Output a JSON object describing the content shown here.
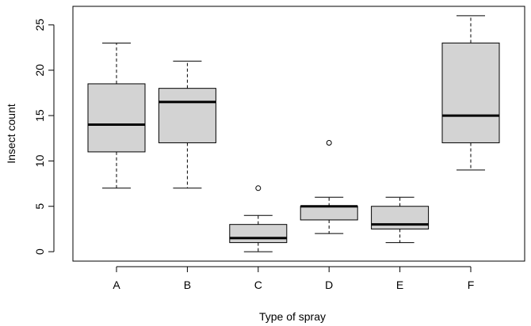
{
  "chart_data": {
    "type": "boxplot",
    "xlabel": "Type of spray",
    "ylabel": "Insect count",
    "categories": [
      "A",
      "B",
      "C",
      "D",
      "E",
      "F"
    ],
    "y_ticks": [
      "0",
      "5",
      "10",
      "15",
      "20",
      "25"
    ],
    "ylim": [
      -1.04,
      27.04
    ],
    "boxes": [
      {
        "label": "A",
        "whisker_low": 7,
        "q1": 11,
        "median": 14,
        "q3": 18.5,
        "whisker_high": 23,
        "outliers": []
      },
      {
        "label": "B",
        "whisker_low": 7,
        "q1": 12,
        "median": 16.5,
        "q3": 18,
        "whisker_high": 21,
        "outliers": []
      },
      {
        "label": "C",
        "whisker_low": 0,
        "q1": 1,
        "median": 1.5,
        "q3": 3,
        "whisker_high": 4,
        "outliers": [
          7
        ]
      },
      {
        "label": "D",
        "whisker_low": 2,
        "q1": 3.5,
        "median": 5,
        "q3": 5,
        "whisker_high": 6,
        "outliers": [
          12
        ]
      },
      {
        "label": "E",
        "whisker_low": 1,
        "q1": 2.5,
        "median": 3,
        "q3": 5,
        "whisker_high": 6,
        "outliers": []
      },
      {
        "label": "F",
        "whisker_low": 9,
        "q1": 12,
        "median": 15,
        "q3": 23,
        "whisker_high": 26,
        "outliers": []
      }
    ],
    "colors": {
      "box_fill": "#d3d3d3",
      "line": "#000000"
    },
    "grid": false,
    "legend": "none"
  }
}
